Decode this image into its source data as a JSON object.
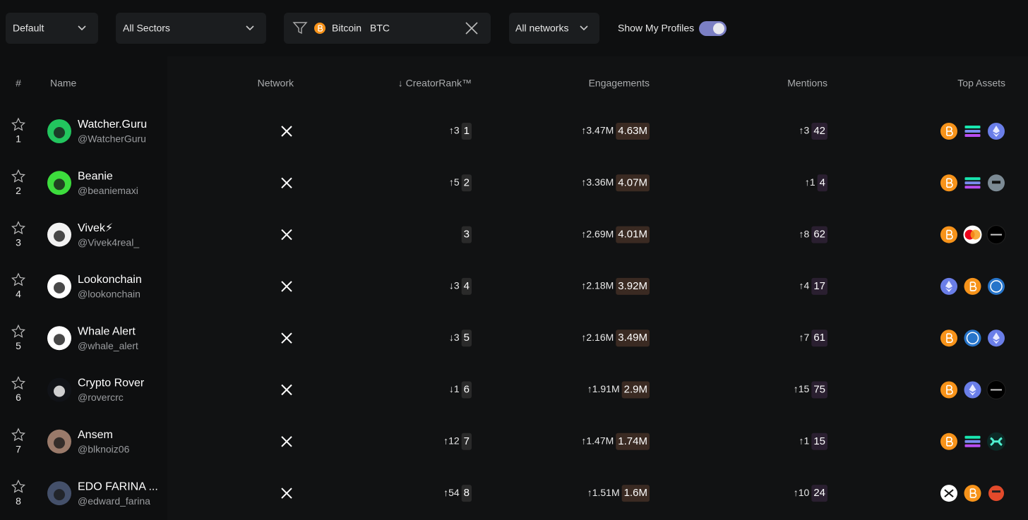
{
  "filters": {
    "sort": "Default",
    "sector": "All Sectors",
    "search_name": "Bitcoin",
    "search_symbol": "BTC",
    "network": "All networks",
    "toggle_label": "Show My Profiles"
  },
  "table": {
    "columns": [
      "#",
      "Name",
      "Network",
      "↓ CreatorRank™",
      "Engagements",
      "Mentions",
      "Top Assets"
    ],
    "rows": [
      {
        "index": "1",
        "name": "Watcher.Guru",
        "handle": "@WatcherGuru",
        "rank_change": "↑3",
        "creator_rank": "1",
        "engagement_change": "↑3.47M",
        "engagements": "4.63M",
        "mention_change": "↑3",
        "mentions": "42"
      },
      {
        "index": "2",
        "name": "Beanie",
        "handle": "@beaniemaxi",
        "rank_change": "↑5",
        "creator_rank": "2",
        "engagement_change": "↑3.36M",
        "engagements": "4.07M",
        "mention_change": "↑1",
        "mentions": "4"
      },
      {
        "index": "3",
        "name": "Vivek⚡",
        "handle": "@Vivek4real_",
        "creator_rank": "3",
        "engagement_change": "↑2.69M",
        "engagements": "4.01M",
        "mention_change": "↑8",
        "mentions": "62"
      },
      {
        "index": "4",
        "name": "Lookonchain",
        "handle": "@lookonchain",
        "rank_change": "↓3",
        "creator_rank": "4",
        "engagement_change": "↑2.18M",
        "engagements": "3.92M",
        "mention_change": "↑4",
        "mentions": "17"
      },
      {
        "index": "5",
        "name": "Whale Alert",
        "handle": "@whale_alert",
        "rank_change": "↓3",
        "creator_rank": "5",
        "engagement_change": "↑2.16M",
        "engagements": "3.49M",
        "mention_change": "↑7",
        "mentions": "61"
      },
      {
        "index": "6",
        "name": "Crypto Rover",
        "handle": "@rovercrc",
        "rank_change": "↓1",
        "creator_rank": "6",
        "engagement_change": "↑1.91M",
        "engagements": "2.9M",
        "mention_change": "↑15",
        "mentions": "75"
      },
      {
        "index": "7",
        "name": "Ansem",
        "handle": "@blknoiz06",
        "rank_change": "↑12",
        "creator_rank": "7",
        "engagement_change": "↑1.47M",
        "engagements": "1.74M",
        "mention_change": "↑1",
        "mentions": "15"
      },
      {
        "index": "8",
        "name": "EDO FARINA ...",
        "handle": "@edward_farina",
        "rank_change": "↑54",
        "creator_rank": "8",
        "engagement_change": "↑1.51M",
        "engagements": "1.6M",
        "mention_change": "↑10",
        "mentions": "24"
      }
    ]
  }
}
